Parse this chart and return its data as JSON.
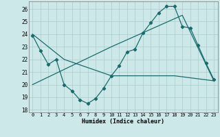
{
  "xlabel": "Humidex (Indice chaleur)",
  "xlim": [
    -0.5,
    23.5
  ],
  "ylim": [
    17.8,
    26.6
  ],
  "yticks": [
    18,
    19,
    20,
    21,
    22,
    23,
    24,
    25,
    26
  ],
  "xticks": [
    0,
    1,
    2,
    3,
    4,
    5,
    6,
    7,
    8,
    9,
    10,
    11,
    12,
    13,
    14,
    15,
    16,
    17,
    18,
    19,
    20,
    21,
    22,
    23
  ],
  "bg_color": "#cce8e8",
  "grid_color": "#aacccc",
  "line_color": "#1a6b6b",
  "line1_x": [
    0,
    1,
    2,
    3,
    4,
    5,
    6,
    7,
    8,
    9,
    10,
    11,
    12,
    13,
    14,
    15,
    16,
    17,
    18,
    19,
    20,
    21,
    22,
    23
  ],
  "line1_y": [
    23.9,
    22.7,
    21.6,
    22.0,
    20.0,
    19.5,
    18.8,
    18.5,
    18.9,
    19.7,
    20.7,
    21.5,
    22.6,
    22.8,
    24.1,
    24.9,
    25.7,
    26.2,
    26.2,
    24.6,
    24.5,
    23.1,
    21.7,
    20.4
  ],
  "line2_x": [
    0,
    4,
    10,
    18,
    23
  ],
  "line2_y": [
    24.0,
    22.0,
    20.7,
    20.7,
    20.3
  ],
  "line3_x": [
    0,
    10,
    19,
    23
  ],
  "line3_y": [
    20.0,
    23.0,
    25.5,
    20.3
  ]
}
